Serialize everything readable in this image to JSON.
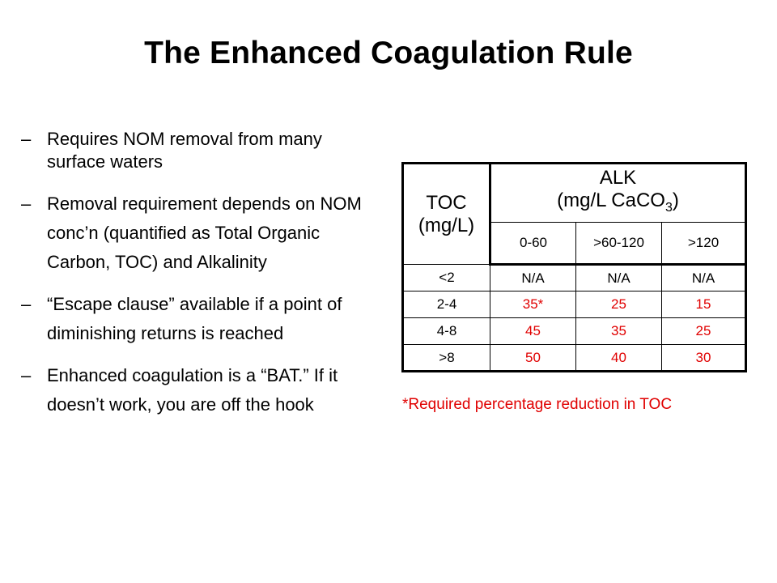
{
  "title": "The Enhanced Coagulation Rule",
  "bullets": [
    {
      "dash": "–",
      "text": "Requires NOM removal from many surface waters"
    },
    {
      "dash": "–",
      "text": "Removal requirement depends on NOM conc’n (quantified as Total Organic Carbon, TOC) and Alkalinity"
    },
    {
      "dash": "–",
      "text": "“Escape clause” available if a point of diminishing returns is reached"
    },
    {
      "dash": "–",
      "text": "Enhanced coagulation is a “BAT.” If it doesn’t work, you are off the hook"
    }
  ],
  "table": {
    "toc_header_line1": "TOC",
    "toc_header_line2": "(mg/L)",
    "alk_header_line1": "ALK",
    "alk_header_line2_prefix": "(mg/L CaCO",
    "alk_header_sub": "3",
    "alk_header_line2_suffix": ")",
    "alk_columns": [
      "0-60",
      ">60-120",
      ">120"
    ],
    "rows": [
      {
        "toc": "<2",
        "values": [
          "N/A",
          "N/A",
          "N/A"
        ],
        "highlight": false
      },
      {
        "toc": "2-4",
        "values": [
          "35*",
          "25",
          "15"
        ],
        "highlight": true
      },
      {
        "toc": "4-8",
        "values": [
          "45",
          "35",
          "25"
        ],
        "highlight": true
      },
      {
        "toc": ">8",
        "values": [
          "50",
          "40",
          "30"
        ],
        "highlight": true
      }
    ]
  },
  "footnote": "*Required percentage reduction in TOC",
  "colors": {
    "highlight": "#e00000"
  }
}
